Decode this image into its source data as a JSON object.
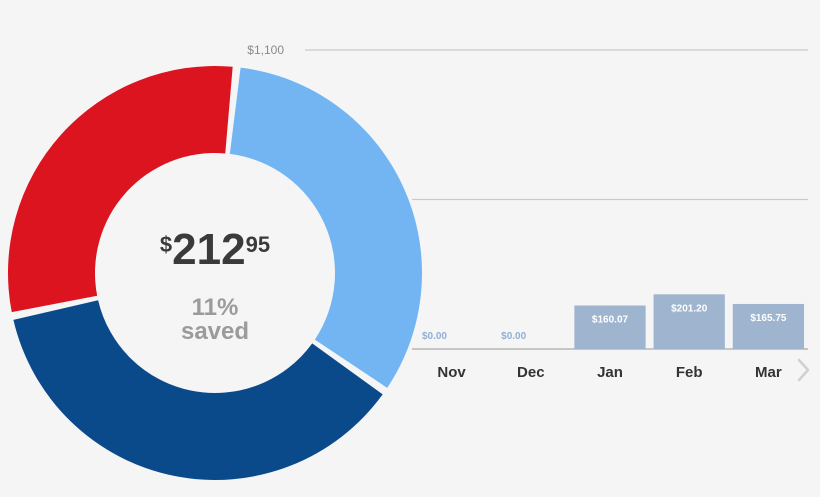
{
  "summary": {
    "currency_symbol": "$",
    "amount_dollars": "212",
    "amount_cents": "95",
    "percent_saved": "11%",
    "saved_label": "saved"
  },
  "colors": {
    "dark_blue": "#0b4a8a",
    "light_blue": "#72b5f2",
    "red": "#dc1420",
    "bar": "#9fb5cf",
    "zero_label": "#8fb0d6",
    "grid": "#c9c9c9"
  },
  "chart_data": [
    {
      "type": "pie",
      "title": "",
      "donut": true,
      "slices": [
        {
          "name": "light-blue-segment",
          "value": 33,
          "color": "#72b5f2"
        },
        {
          "name": "dark-blue-segment",
          "value": 37,
          "color": "#0b4a8a"
        },
        {
          "name": "red-segment",
          "value": 30,
          "color": "#dc1420"
        }
      ]
    },
    {
      "type": "bar",
      "title": "",
      "categories": [
        "Nov",
        "Dec",
        "Jan",
        "Feb",
        "Mar"
      ],
      "values": [
        0,
        0,
        160.07,
        201.2,
        165.75
      ],
      "value_labels": [
        "$0.00",
        "$0.00",
        "$160.07",
        "$201.20",
        "$165.75"
      ],
      "ylim": [
        0,
        1100
      ],
      "yticks": [
        1100
      ],
      "ytick_labels": [
        "$1,100"
      ],
      "gridlines": [
        1100,
        550
      ],
      "xlabel": "",
      "ylabel": ""
    }
  ]
}
